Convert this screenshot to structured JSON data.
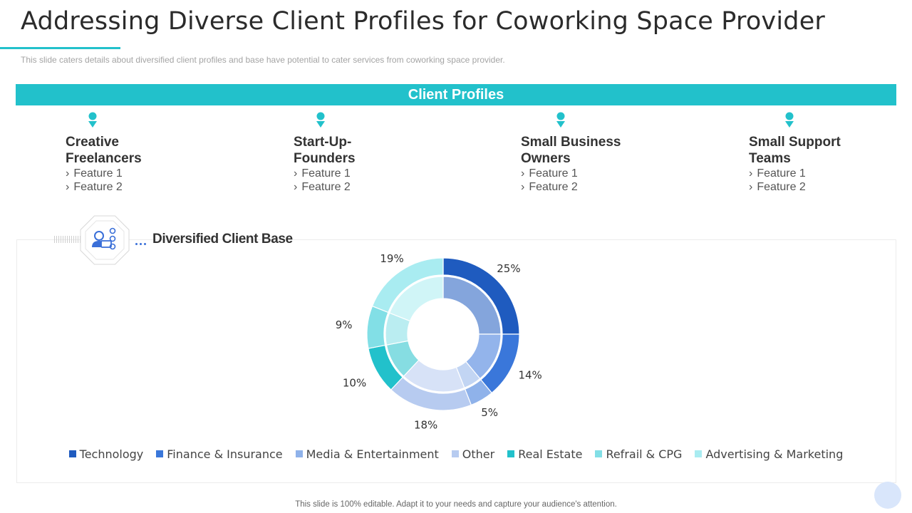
{
  "title": "Addressing Diverse Client Profiles for Coworking Space Provider",
  "subtitle": "This slide caters details about diversified  client profiles and base have potential to cater services from coworking space provider.",
  "banner": "Client Profiles",
  "profiles": [
    {
      "title_line1": "Creative",
      "title_line2": "Freelancers",
      "features": [
        "Feature 1",
        "Feature 2"
      ]
    },
    {
      "title_line1": "Start-Up-",
      "title_line2": "Founders",
      "features": [
        "Feature 1",
        "Feature 2"
      ]
    },
    {
      "title_line1": "Small Business",
      "title_line2": "Owners",
      "features": [
        "Feature 1",
        "Feature 2"
      ]
    },
    {
      "title_line1": "Small Support",
      "title_line2": "Teams",
      "features": [
        "Feature 1",
        "Feature 2"
      ]
    }
  ],
  "feature_bullet": "›",
  "section_title": "Diversified Client Base",
  "icons": {
    "pin": "location-pin-icon",
    "badge": "client-group-icon"
  },
  "colors": {
    "accent": "#22c1cb",
    "title": "#2b2b2b"
  },
  "chart_data": {
    "type": "pie",
    "subtype": "double-ring-donut",
    "categories": [
      "Technology",
      "Finance & Insurance",
      "Media & Entertainment",
      "Other",
      "Real Estate",
      "Refrail & CPG",
      "Advertising & Marketing"
    ],
    "values": [
      25,
      14,
      5,
      18,
      10,
      9,
      19
    ],
    "value_labels": [
      "25%",
      "14%",
      "5%",
      "18%",
      "10%",
      "9%",
      "19%"
    ],
    "colors": [
      "#1f5bbf",
      "#3a77da",
      "#8fb2ea",
      "#b7cbf0",
      "#22c1cb",
      "#82dfe6",
      "#a9ecf1"
    ],
    "inner_ring_opacity": 0.55,
    "legend_position": "bottom"
  },
  "footer": "This slide is 100% editable. Adapt it to your needs and capture your audience's attention."
}
